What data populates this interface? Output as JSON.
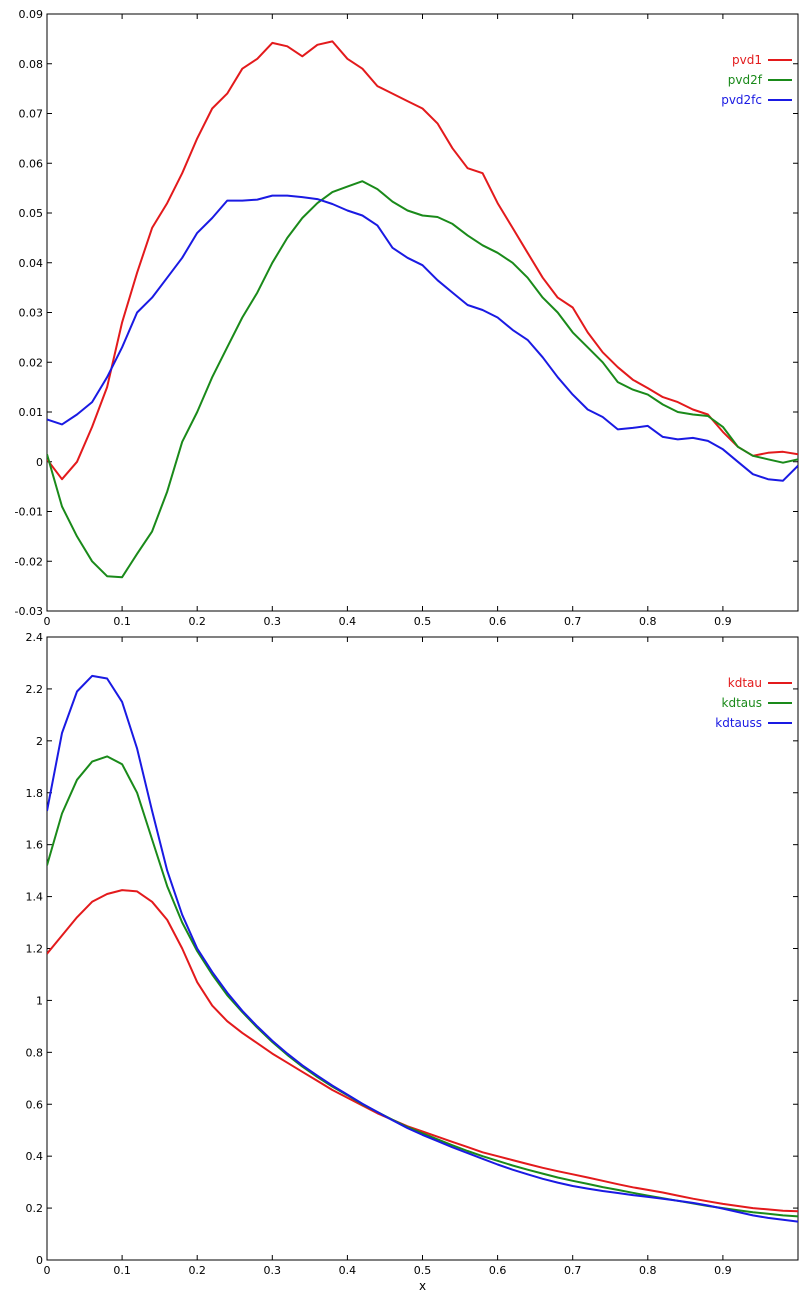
{
  "chart_data": [
    {
      "type": "line",
      "xlim": [
        0,
        1
      ],
      "ylim": [
        -0.03,
        0.09
      ],
      "xticks": [
        "0",
        "0.1",
        "0.2",
        "0.3",
        "0.4",
        "0.5",
        "0.6",
        "0.7",
        "0.8",
        "0.9"
      ],
      "yticks": [
        "-0.03",
        "-0.02",
        "-0.01",
        "0",
        "0.01",
        "0.02",
        "0.03",
        "0.04",
        "0.05",
        "0.06",
        "0.07",
        "0.08",
        "0.09"
      ],
      "grid": false,
      "legend_position": "top-right",
      "series": [
        {
          "name": "pvd1",
          "color": "#e31a1c",
          "x": [
            0,
            0.02,
            0.04,
            0.06,
            0.08,
            0.1,
            0.12,
            0.14,
            0.16,
            0.18,
            0.2,
            0.22,
            0.24,
            0.26,
            0.28,
            0.3,
            0.32,
            0.34,
            0.36,
            0.38,
            0.4,
            0.42,
            0.44,
            0.46,
            0.48,
            0.5,
            0.52,
            0.54,
            0.56,
            0.58,
            0.6,
            0.62,
            0.64,
            0.66,
            0.68,
            0.7,
            0.72,
            0.74,
            0.76,
            0.78,
            0.8,
            0.82,
            0.84,
            0.86,
            0.88,
            0.9,
            0.92,
            0.94,
            0.96,
            0.98,
            1.0
          ],
          "y": [
            0.0005,
            -0.0035,
            0.0,
            0.007,
            0.015,
            0.028,
            0.038,
            0.047,
            0.052,
            0.058,
            0.065,
            0.071,
            0.074,
            0.079,
            0.081,
            0.0842,
            0.0835,
            0.0815,
            0.0838,
            0.0845,
            0.081,
            0.079,
            0.0755,
            0.074,
            0.0725,
            0.071,
            0.068,
            0.063,
            0.059,
            0.058,
            0.052,
            0.047,
            0.042,
            0.037,
            0.033,
            0.031,
            0.026,
            0.022,
            0.019,
            0.0165,
            0.0148,
            0.013,
            0.012,
            0.0105,
            0.0095,
            0.006,
            0.003,
            0.0012,
            0.0018,
            0.002,
            0.0015
          ]
        },
        {
          "name": "pvd2f",
          "color": "#1a8a1a",
          "x": [
            0,
            0.02,
            0.04,
            0.06,
            0.08,
            0.1,
            0.12,
            0.14,
            0.16,
            0.18,
            0.2,
            0.22,
            0.24,
            0.26,
            0.28,
            0.3,
            0.32,
            0.34,
            0.36,
            0.38,
            0.4,
            0.42,
            0.44,
            0.46,
            0.48,
            0.5,
            0.52,
            0.54,
            0.56,
            0.58,
            0.6,
            0.62,
            0.64,
            0.66,
            0.68,
            0.7,
            0.72,
            0.74,
            0.76,
            0.78,
            0.8,
            0.82,
            0.84,
            0.86,
            0.88,
            0.9,
            0.92,
            0.94,
            0.96,
            0.98,
            1.0
          ],
          "y": [
            0.0015,
            -0.009,
            -0.015,
            -0.02,
            -0.023,
            -0.0232,
            -0.0185,
            -0.014,
            -0.006,
            0.004,
            0.01,
            0.017,
            0.023,
            0.029,
            0.034,
            0.04,
            0.045,
            0.049,
            0.052,
            0.0542,
            0.0553,
            0.0564,
            0.0548,
            0.0523,
            0.0505,
            0.0495,
            0.0492,
            0.0478,
            0.0455,
            0.0435,
            0.042,
            0.04,
            0.037,
            0.033,
            0.03,
            0.026,
            0.023,
            0.02,
            0.016,
            0.0145,
            0.0135,
            0.0115,
            0.01,
            0.0095,
            0.0092,
            0.007,
            0.003,
            0.0012,
            0.0005,
            -0.0002,
            0.0005
          ]
        },
        {
          "name": "pvd2fc",
          "color": "#1a1ae3",
          "x": [
            0,
            0.02,
            0.04,
            0.06,
            0.08,
            0.1,
            0.12,
            0.14,
            0.16,
            0.18,
            0.2,
            0.22,
            0.24,
            0.26,
            0.28,
            0.3,
            0.32,
            0.34,
            0.36,
            0.38,
            0.4,
            0.42,
            0.44,
            0.46,
            0.48,
            0.5,
            0.52,
            0.54,
            0.56,
            0.58,
            0.6,
            0.62,
            0.64,
            0.66,
            0.68,
            0.7,
            0.72,
            0.74,
            0.76,
            0.78,
            0.8,
            0.82,
            0.84,
            0.86,
            0.88,
            0.9,
            0.92,
            0.94,
            0.96,
            0.98,
            1.0
          ],
          "y": [
            0.0085,
            0.0075,
            0.0095,
            0.012,
            0.017,
            0.023,
            0.03,
            0.033,
            0.037,
            0.041,
            0.046,
            0.049,
            0.0525,
            0.0525,
            0.0527,
            0.0535,
            0.0535,
            0.0532,
            0.0528,
            0.0518,
            0.0505,
            0.0495,
            0.0475,
            0.043,
            0.041,
            0.0395,
            0.0365,
            0.034,
            0.0315,
            0.0305,
            0.029,
            0.0265,
            0.0245,
            0.021,
            0.017,
            0.0135,
            0.0105,
            0.009,
            0.0065,
            0.0068,
            0.0072,
            0.005,
            0.0045,
            0.0048,
            0.0042,
            0.0025,
            0.0,
            -0.0025,
            -0.0035,
            -0.0038,
            -0.0008
          ]
        }
      ]
    },
    {
      "type": "line",
      "xlabel": "x",
      "xlim": [
        0,
        1
      ],
      "ylim": [
        0,
        2.4
      ],
      "xticks": [
        "0",
        "0.1",
        "0.2",
        "0.3",
        "0.4",
        "0.5",
        "0.6",
        "0.7",
        "0.8",
        "0.9"
      ],
      "yticks": [
        "0",
        "0.2",
        "0.4",
        "0.6",
        "0.8",
        "1",
        "1.2",
        "1.4",
        "1.6",
        "1.8",
        "2",
        "2.2",
        "2.4"
      ],
      "grid": false,
      "legend_position": "top-right",
      "series": [
        {
          "name": "kdtau",
          "color": "#e31a1c",
          "x": [
            0,
            0.02,
            0.04,
            0.06,
            0.08,
            0.1,
            0.12,
            0.14,
            0.16,
            0.18,
            0.2,
            0.22,
            0.24,
            0.26,
            0.28,
            0.3,
            0.32,
            0.34,
            0.36,
            0.38,
            0.4,
            0.42,
            0.44,
            0.46,
            0.48,
            0.5,
            0.52,
            0.54,
            0.56,
            0.58,
            0.6,
            0.62,
            0.64,
            0.66,
            0.68,
            0.7,
            0.72,
            0.74,
            0.76,
            0.78,
            0.8,
            0.82,
            0.84,
            0.86,
            0.88,
            0.9,
            0.92,
            0.94,
            0.96,
            0.98,
            1.0
          ],
          "y": [
            1.18,
            1.25,
            1.32,
            1.38,
            1.41,
            1.425,
            1.42,
            1.38,
            1.31,
            1.2,
            1.07,
            0.98,
            0.92,
            0.875,
            0.835,
            0.795,
            0.76,
            0.725,
            0.69,
            0.655,
            0.625,
            0.595,
            0.565,
            0.54,
            0.515,
            0.495,
            0.475,
            0.455,
            0.435,
            0.415,
            0.4,
            0.385,
            0.37,
            0.355,
            0.342,
            0.33,
            0.318,
            0.305,
            0.292,
            0.28,
            0.27,
            0.26,
            0.248,
            0.236,
            0.226,
            0.216,
            0.208,
            0.2,
            0.195,
            0.19,
            0.188
          ]
        },
        {
          "name": "kdtaus",
          "color": "#1a8a1a",
          "x": [
            0,
            0.02,
            0.04,
            0.06,
            0.08,
            0.1,
            0.12,
            0.14,
            0.16,
            0.18,
            0.2,
            0.22,
            0.24,
            0.26,
            0.28,
            0.3,
            0.32,
            0.34,
            0.36,
            0.38,
            0.4,
            0.42,
            0.44,
            0.46,
            0.48,
            0.5,
            0.52,
            0.54,
            0.56,
            0.58,
            0.6,
            0.62,
            0.64,
            0.66,
            0.68,
            0.7,
            0.72,
            0.74,
            0.76,
            0.78,
            0.8,
            0.82,
            0.84,
            0.86,
            0.88,
            0.9,
            0.92,
            0.94,
            0.96,
            0.98,
            1.0
          ],
          "y": [
            1.52,
            1.72,
            1.85,
            1.92,
            1.94,
            1.91,
            1.8,
            1.62,
            1.44,
            1.3,
            1.19,
            1.1,
            1.02,
            0.955,
            0.895,
            0.84,
            0.79,
            0.745,
            0.705,
            0.668,
            0.635,
            0.6,
            0.57,
            0.54,
            0.512,
            0.488,
            0.465,
            0.442,
            0.42,
            0.4,
            0.382,
            0.364,
            0.348,
            0.333,
            0.318,
            0.305,
            0.293,
            0.281,
            0.27,
            0.259,
            0.248,
            0.238,
            0.228,
            0.218,
            0.208,
            0.2,
            0.192,
            0.184,
            0.178,
            0.172,
            0.168
          ]
        },
        {
          "name": "kdtauss",
          "color": "#1a1ae3",
          "x": [
            0,
            0.02,
            0.04,
            0.06,
            0.08,
            0.1,
            0.12,
            0.14,
            0.16,
            0.18,
            0.2,
            0.22,
            0.24,
            0.26,
            0.28,
            0.3,
            0.32,
            0.34,
            0.36,
            0.38,
            0.4,
            0.42,
            0.44,
            0.46,
            0.48,
            0.5,
            0.52,
            0.54,
            0.56,
            0.58,
            0.6,
            0.62,
            0.64,
            0.66,
            0.68,
            0.7,
            0.72,
            0.74,
            0.76,
            0.78,
            0.8,
            0.82,
            0.84,
            0.86,
            0.88,
            0.9,
            0.92,
            0.94,
            0.96,
            0.98,
            1.0
          ],
          "y": [
            1.73,
            2.03,
            2.19,
            2.25,
            2.24,
            2.15,
            1.97,
            1.73,
            1.5,
            1.33,
            1.2,
            1.11,
            1.03,
            0.96,
            0.9,
            0.845,
            0.795,
            0.75,
            0.71,
            0.672,
            0.637,
            0.602,
            0.57,
            0.538,
            0.508,
            0.482,
            0.458,
            0.434,
            0.412,
            0.39,
            0.368,
            0.348,
            0.33,
            0.313,
            0.298,
            0.285,
            0.275,
            0.266,
            0.258,
            0.25,
            0.243,
            0.236,
            0.228,
            0.22,
            0.21,
            0.198,
            0.185,
            0.172,
            0.162,
            0.155,
            0.148
          ]
        }
      ]
    }
  ]
}
